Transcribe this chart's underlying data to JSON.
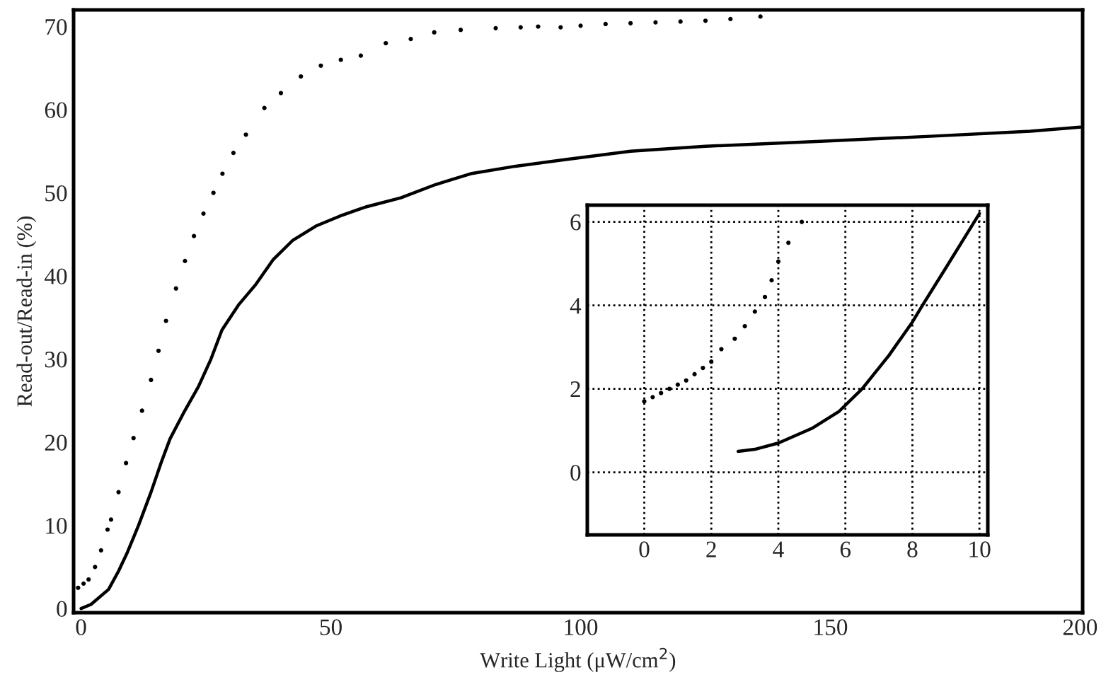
{
  "chart_data": [
    {
      "type": "line",
      "xlabel": "Write Light (μW/cm$^{2}$)",
      "ylabel": "Read-out/Read-in (%)",
      "xlim": [
        -1.5,
        200.5
      ],
      "ylim": [
        -0.5,
        72
      ],
      "xticks": [
        0,
        50,
        100,
        150,
        200
      ],
      "yticks": [
        0,
        10,
        20,
        30,
        40,
        50,
        60,
        70
      ],
      "grid": false,
      "series": [
        {
          "type": "scatter",
          "marker": "circle",
          "color": "#000000",
          "x": [
            -0.6,
            0.5,
            1.5,
            2.8,
            4,
            5.3,
            6,
            7.5,
            9,
            10.5,
            12.2,
            14,
            15.5,
            17,
            19,
            20.8,
            22.6,
            24.5,
            26.5,
            28.3,
            30.5,
            33,
            36.7,
            40,
            44,
            48,
            52,
            56,
            61,
            66,
            70.7,
            76,
            83,
            88,
            91.5,
            96,
            100,
            105,
            110,
            115,
            120,
            125,
            130,
            136
          ],
          "values": [
            2.5,
            3,
            3.5,
            5,
            7,
            9.5,
            10.7,
            14,
            17.5,
            20.5,
            23.8,
            27.5,
            31,
            34.6,
            38.5,
            41.8,
            44.8,
            47.5,
            50,
            52.3,
            54.8,
            57,
            60.2,
            62,
            64,
            65.3,
            66,
            66.5,
            68,
            68.5,
            69.3,
            69.6,
            69.8,
            69.9,
            70,
            69.9,
            70.1,
            70.3,
            70.4,
            70.5,
            70.6,
            70.7,
            70.9,
            71.2
          ]
        },
        {
          "line_style": "solid",
          "color": "#000000",
          "x": [
            0,
            2,
            5.5,
            7.5,
            9.3,
            11.5,
            14,
            16,
            17.8,
            20.5,
            23.5,
            26,
            28.2,
            31.5,
            35,
            38.5,
            42.4,
            47,
            51.8,
            57,
            64,
            71,
            78,
            87,
            97,
            110,
            125,
            148,
            170,
            190,
            200
          ],
          "values": [
            0,
            0.5,
            2.3,
            4.5,
            6.8,
            10,
            14,
            17.5,
            20.4,
            23.5,
            26.7,
            30,
            33.5,
            36.5,
            39,
            42,
            44.3,
            46,
            47.2,
            48.3,
            49.4,
            51,
            52.3,
            53.2,
            54,
            55,
            55.6,
            56.2,
            56.8,
            57.4,
            57.9
          ]
        }
      ]
    },
    {
      "type": "line",
      "xlim": [
        -1.7,
        10.25
      ],
      "ylim": [
        -1.5,
        6.4
      ],
      "xticks": [
        0,
        2,
        4,
        6,
        8,
        10
      ],
      "yticks": [
        0,
        2,
        4,
        6
      ],
      "grid": true,
      "series": [
        {
          "type": "scatter",
          "marker": "circle",
          "color": "#000000",
          "x": [
            0,
            0.25,
            0.5,
            0.75,
            1,
            1.25,
            1.5,
            1.75,
            2,
            2.3,
            2.7,
            3,
            3.3,
            3.6,
            3.8,
            4,
            4.3,
            4.7
          ],
          "values": [
            1.7,
            1.8,
            1.9,
            2.0,
            2.1,
            2.2,
            2.35,
            2.5,
            2.65,
            2.95,
            3.2,
            3.5,
            3.85,
            4.2,
            4.6,
            5.05,
            5.5,
            6
          ]
        },
        {
          "line_style": "solid",
          "color": "#000000",
          "x": [
            2.8,
            3.3,
            4,
            5,
            5.8,
            6.5,
            7.3,
            8,
            8.3,
            9,
            10
          ],
          "values": [
            0.5,
            0.55,
            0.7,
            1.05,
            1.45,
            2.0,
            2.8,
            3.6,
            4.0,
            4.9,
            6.2
          ]
        }
      ]
    }
  ]
}
